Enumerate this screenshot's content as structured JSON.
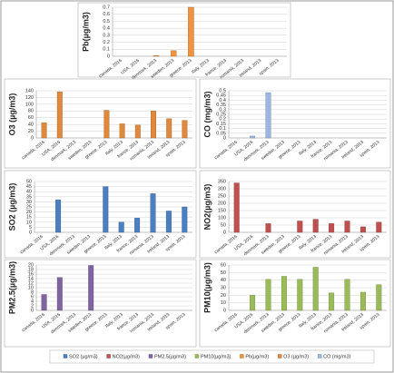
{
  "chart_data": [
    {
      "type": "bar",
      "y_label": "SO2 (µg/m3)",
      "categories": [
        "canada, 2016",
        "USA, 2016",
        "denmark, 2013",
        "sweden, 2013",
        "greece, 2013",
        "Italy, 2013",
        "france, 2013",
        "romania, 2013",
        "Ireland, 2013",
        "spain, 2013"
      ],
      "series": [
        {
          "name": "SO2 (µg/m3)",
          "color": "#4a7fc1",
          "values": [
            0,
            32,
            0,
            0,
            45,
            10,
            14,
            38,
            21,
            25
          ]
        }
      ],
      "ylim": [
        0,
        50
      ],
      "yticks": [
        0,
        5,
        10,
        15,
        20,
        25,
        30,
        35,
        40,
        45,
        50
      ],
      "grid": true
    },
    {
      "type": "bar",
      "y_label": "NO2(µg/m3)",
      "categories": [
        "canada, 2016",
        "USA, 2016",
        "denmark, 2013",
        "sweden, 2013",
        "greece, 2013",
        "Italy, 2013",
        "france, 2013",
        "romania, 2013",
        "Ireland, 2013",
        "spain, 2013"
      ],
      "series": [
        {
          "name": "NO2(µg/m3)",
          "color": "#c0504d",
          "values": [
            340,
            0,
            60,
            0,
            78,
            90,
            60,
            78,
            38,
            70
          ]
        }
      ],
      "ylim": [
        0,
        350
      ],
      "yticks": [
        0,
        50,
        100,
        150,
        200,
        250,
        300,
        350
      ],
      "grid": true
    },
    {
      "type": "bar",
      "y_label": "PM2.5(µg/m3)",
      "categories": [
        "canada, 2016",
        "USA, 2016",
        "denmark, 2013",
        "sweden, 2013",
        "greece, 2013",
        "Italy, 2013",
        "france, 2013",
        "romania, 2013",
        "Ireland, 2013",
        "spain, 2013"
      ],
      "series": [
        {
          "name": "PM2.5(µg/m3)",
          "color": "#8064a2",
          "values": [
            7,
            14.5,
            0,
            19.8,
            0,
            0,
            0,
            0,
            0,
            0
          ]
        }
      ],
      "ylim": [
        0,
        20
      ],
      "yticks": [
        0,
        2,
        4,
        6,
        8,
        10,
        12,
        14,
        16,
        18,
        20
      ],
      "grid": true
    },
    {
      "type": "bar",
      "y_label": "PM10(µg/m3)",
      "categories": [
        "canada, 2016",
        "USA, 2016",
        "denmark, 2013",
        "sweden, 2013",
        "greece, 2013",
        "Italy, 2013",
        "france, 2013",
        "romania, 2013",
        "Ireland, 2013",
        "spain, 2013"
      ],
      "series": [
        {
          "name": "PM10(µg/m3)",
          "color": "#9bbb59",
          "values": [
            0,
            20,
            41,
            45,
            41,
            57,
            23,
            41,
            24,
            34
          ]
        }
      ],
      "ylim": [
        0,
        60
      ],
      "yticks": [
        0,
        10,
        20,
        30,
        40,
        50,
        60
      ],
      "grid": true
    },
    {
      "type": "bar",
      "y_label": "Pb(µg/m3)",
      "categories": [
        "canada, 2016",
        "USA, 2016",
        "denmark, 2013",
        "sweden, 2013",
        "greece, 2013",
        "Italy, 2013",
        "france, 2013",
        "romania, 2013",
        "Ireland, 2013",
        "spain, 2013"
      ],
      "series": [
        {
          "name": "Pb(µg/m3)",
          "color": "#f0923e",
          "values": [
            0,
            0,
            0.01,
            0.08,
            0.7,
            0,
            0,
            0,
            0,
            0
          ]
        }
      ],
      "ylim": [
        0,
        0.7
      ],
      "yticks": [
        0,
        0.1,
        0.2,
        0.3,
        0.4,
        0.5,
        0.6,
        0.7
      ],
      "grid": true
    },
    {
      "type": "bar",
      "y_label": "O3 (µg/m3)",
      "categories": [
        "canada, 2016",
        "USA, 2016",
        "denmark, 2013",
        "sweden, 2013",
        "greece, 2013",
        "Italy, 2013",
        "france, 2013",
        "romania, 2013",
        "Ireland, 2013",
        "spain, 2013"
      ],
      "series": [
        {
          "name": "O3 (µg/m3)",
          "color": "#e0893c",
          "values": [
            45,
            137,
            0,
            0,
            82,
            42,
            38,
            80,
            57,
            52
          ]
        }
      ],
      "ylim": [
        0,
        140
      ],
      "yticks": [
        0,
        20,
        40,
        60,
        80,
        100,
        120,
        140
      ],
      "grid": true
    },
    {
      "type": "bar",
      "y_label": "CO (mg/m3)",
      "categories": [
        "canada, 2016",
        "USA, 2016",
        "denmark, 2013",
        "sweden, 2013",
        "greece, 2013",
        "Italy, 2013",
        "france, 2013",
        "romania, 2013",
        "Ireland, 2013",
        "spain, 2013"
      ],
      "series": [
        {
          "name": "CO (mg/m3)",
          "color": "#9bb7e0",
          "values": [
            0,
            0.02,
            0.48,
            0,
            0,
            0,
            0,
            0,
            0,
            0
          ]
        }
      ],
      "ylim": [
        0,
        0.5
      ],
      "yticks": [
        0,
        0.05,
        0.1,
        0.15,
        0.2,
        0.25,
        0.3,
        0.35,
        0.4,
        0.45,
        0.5
      ],
      "grid": true
    }
  ]
}
